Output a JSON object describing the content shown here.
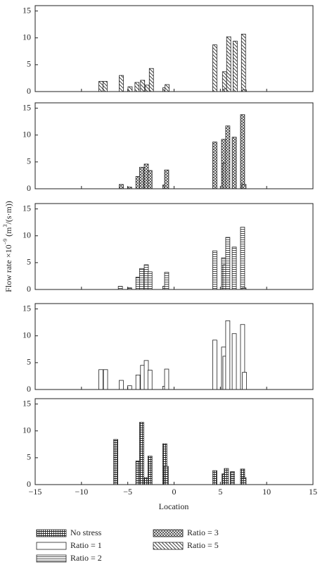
{
  "x_label": "Location",
  "y_label": [
    "Flow rate ×10",
    "−9",
    " (m",
    "3",
    "/(s·m))"
  ],
  "chart_data": [
    {
      "type": "bar",
      "xlim": [
        -15,
        15
      ],
      "ylim": [
        0,
        16
      ],
      "yticks": [
        0,
        5,
        10,
        15
      ],
      "xticks": [
        -15,
        -10,
        -5,
        0,
        5,
        10,
        15
      ],
      "series": [
        {
          "name": "Ratio = 5",
          "pattern": "diag",
          "x": [
            -7.9,
            -7.45,
            -5.7,
            -4.75,
            -4.0,
            -3.4,
            -2.9,
            -2.45,
            -1.0,
            -0.75,
            4.4,
            5.45,
            5.6,
            5.9,
            6.6,
            7.5,
            7.6
          ],
          "values": [
            1.9,
            1.9,
            3.0,
            0.9,
            1.7,
            2.1,
            1.2,
            4.3,
            0.7,
            1.3,
            8.7,
            3.7,
            0.5,
            10.2,
            9.4,
            10.7,
            0.3
          ]
        }
      ]
    },
    {
      "type": "bar",
      "xlim": [
        -15,
        15
      ],
      "ylim": [
        0,
        16
      ],
      "yticks": [
        0,
        5,
        10,
        15
      ],
      "xticks": [
        -15,
        -10,
        -5,
        0,
        5,
        10,
        15
      ],
      "series": [
        {
          "name": "Ratio = 3",
          "pattern": "cross",
          "x": [
            -5.7,
            -4.8,
            -3.9,
            -3.5,
            -3.0,
            -2.6,
            -1.0,
            -0.8,
            4.4,
            5.35,
            5.5,
            5.8,
            6.5,
            7.4,
            7.55
          ],
          "values": [
            0.8,
            0.3,
            2.3,
            4.0,
            4.6,
            3.4,
            0.7,
            3.5,
            8.7,
            9.2,
            4.8,
            11.7,
            9.6,
            13.8,
            0.8
          ]
        }
      ]
    },
    {
      "type": "bar",
      "xlim": [
        -15,
        15
      ],
      "ylim": [
        0,
        16
      ],
      "yticks": [
        0,
        5,
        10,
        15
      ],
      "xticks": [
        -15,
        -10,
        -5,
        0,
        5,
        10,
        15
      ],
      "series": [
        {
          "name": "Ratio = 2",
          "pattern": "hlines",
          "x": [
            -5.8,
            -4.8,
            -3.9,
            -3.5,
            -3.0,
            -2.6,
            -1.0,
            -0.8,
            4.4,
            5.35,
            5.5,
            5.8,
            6.5,
            7.4,
            7.55
          ],
          "values": [
            0.6,
            0.3,
            2.3,
            3.9,
            4.6,
            3.3,
            0.6,
            3.2,
            7.2,
            5.9,
            4.6,
            9.7,
            7.9,
            11.6,
            0.3
          ]
        }
      ]
    },
    {
      "type": "bar",
      "xlim": [
        -15,
        15
      ],
      "ylim": [
        0,
        16
      ],
      "yticks": [
        0,
        5,
        10,
        15
      ],
      "xticks": [
        -15,
        -10,
        -5,
        0,
        5,
        10,
        15
      ],
      "series": [
        {
          "name": "Ratio = 1",
          "pattern": "none",
          "x": [
            -7.9,
            -7.4,
            -5.7,
            -4.8,
            -3.9,
            -3.4,
            -3.0,
            -2.6,
            -1.0,
            -0.8,
            4.4,
            5.35,
            5.5,
            5.8,
            6.5,
            7.4,
            7.6
          ],
          "values": [
            3.7,
            3.7,
            1.7,
            0.7,
            2.7,
            4.5,
            5.4,
            3.6,
            0.6,
            3.8,
            9.2,
            7.9,
            6.2,
            12.8,
            10.4,
            12.1,
            3.2
          ]
        }
      ]
    },
    {
      "type": "bar",
      "xlim": [
        -15,
        15
      ],
      "ylim": [
        0,
        16
      ],
      "yticks": [
        0,
        5,
        10,
        15
      ],
      "xticks": [
        -15,
        -10,
        -5,
        0,
        5,
        10,
        15
      ],
      "series": [
        {
          "name": "No stress",
          "pattern": "grid",
          "x": [
            -6.3,
            -3.9,
            -3.5,
            -3.0,
            -2.6,
            -1.0,
            -0.85,
            4.4,
            5.4,
            5.65,
            6.3,
            7.4,
            7.55
          ],
          "values": [
            8.4,
            4.4,
            11.6,
            1.3,
            5.3,
            7.6,
            3.4,
            2.6,
            2.0,
            3.0,
            2.4,
            2.9,
            1.3
          ]
        }
      ]
    }
  ]
}
